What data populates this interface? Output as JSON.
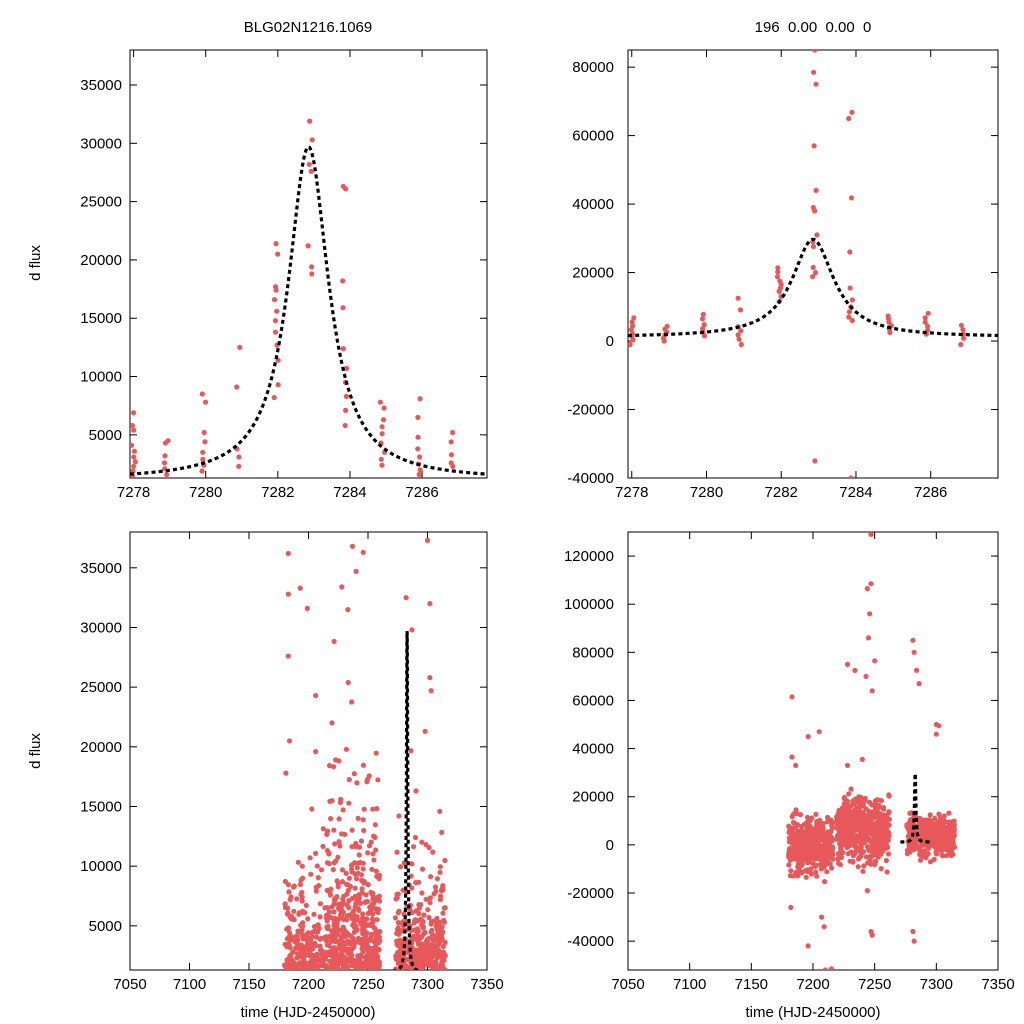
{
  "chart_data": [
    {
      "id": "zoom-normalized",
      "type": "scatter",
      "title": "BLG02N1216.1069",
      "xlabel": "",
      "ylabel": "d flux",
      "xlim": [
        7277.9,
        7287.8
      ],
      "ylim": [
        1300,
        38000
      ],
      "xticks": [
        7278,
        7280,
        7282,
        7284,
        7286
      ],
      "yticks": [
        5000,
        10000,
        15000,
        20000,
        25000,
        30000,
        35000
      ],
      "model": {
        "t0": 7282.85,
        "tau": 0.68,
        "peak": 29700,
        "base": 1100
      },
      "clusters": [
        {
          "x": 7278.0,
          "ys": [
            1500,
            1900,
            2300,
            2700,
            3100,
            3600,
            4100,
            5400,
            5800,
            6900
          ]
        },
        {
          "x": 7278.9,
          "ys": [
            1600,
            2100,
            2600,
            3200,
            4300,
            4500
          ]
        },
        {
          "x": 7279.95,
          "ys": [
            1900,
            2400,
            2900,
            3500,
            4400,
            5200,
            7800,
            8500
          ]
        },
        {
          "x": 7280.9,
          "ys": [
            2300,
            3100,
            3800,
            9100,
            12500
          ]
        },
        {
          "x": 7281.95,
          "ys": [
            8200,
            9300,
            11400,
            12700,
            13800,
            14800,
            15600,
            16600,
            17400,
            17700,
            20500,
            21400
          ]
        },
        {
          "x": 7282.9,
          "ys": [
            18800,
            19400,
            21200,
            27600,
            28200,
            30300,
            31900
          ]
        },
        {
          "x": 7283.85,
          "ys": [
            5800,
            7100,
            8300,
            9500,
            10700,
            12400,
            15900,
            18200,
            26100,
            26300
          ]
        },
        {
          "x": 7284.9,
          "ys": [
            2400,
            2900,
            3500,
            4300,
            5100,
            5700,
            6300,
            7300,
            7800
          ]
        },
        {
          "x": 7285.9,
          "ys": [
            1600,
            2000,
            2500,
            3100,
            3800,
            4800,
            6500,
            8100
          ]
        },
        {
          "x": 7286.85,
          "ys": [
            2300,
            2600,
            3300,
            4400,
            5200
          ]
        }
      ]
    },
    {
      "id": "zoom-raw",
      "type": "scatter",
      "title": "196 0.00 0.00 0",
      "xlabel": "",
      "ylabel": "",
      "xlim": [
        7277.9,
        7287.8
      ],
      "ylim": [
        -40000,
        85000
      ],
      "xticks": [
        7278,
        7280,
        7282,
        7284,
        7286
      ],
      "yticks": [
        -40000,
        -20000,
        0,
        20000,
        40000,
        60000,
        80000
      ],
      "model": {
        "t0": 7282.85,
        "tau": 0.68,
        "peak": 29700,
        "base": 1100
      },
      "clusters": [
        {
          "x": 7278.0,
          "ys": [
            -1000,
            300,
            1200,
            2200,
            3300,
            4400,
            5600,
            6800
          ]
        },
        {
          "x": 7278.9,
          "ys": [
            0,
            800,
            1700,
            2600,
            3500,
            4300
          ]
        },
        {
          "x": 7279.95,
          "ys": [
            1500,
            2600,
            3600,
            4800,
            6500,
            7800
          ]
        },
        {
          "x": 7280.9,
          "ys": [
            -1000,
            500,
            1800,
            3000,
            4200,
            9100,
            12500
          ]
        },
        {
          "x": 7281.95,
          "ys": [
            11500,
            13000,
            14500,
            15500,
            16500,
            17500,
            18800,
            20200,
            21400
          ]
        },
        {
          "x": 7282.9,
          "ys": [
            -35000,
            18800,
            20000,
            21500,
            27600,
            29000,
            31000,
            38000,
            39000,
            44000,
            57000,
            75000,
            78500,
            85000
          ]
        },
        {
          "x": 7283.85,
          "ys": [
            6000,
            7000,
            8500,
            10000,
            12000,
            15500,
            26000,
            41800,
            65000,
            66800,
            -40000
          ]
        },
        {
          "x": 7284.9,
          "ys": [
            2500,
            3500,
            4500,
            5500,
            6500,
            7300
          ]
        },
        {
          "x": 7285.9,
          "ys": [
            2000,
            3200,
            4300,
            5500,
            6800,
            8100
          ]
        },
        {
          "x": 7286.85,
          "ys": [
            -1000,
            800,
            2000,
            3300,
            4600
          ]
        }
      ]
    },
    {
      "id": "full-normalized",
      "type": "scatter",
      "title": "",
      "xlabel": "time (HJD-2450000)",
      "ylabel": "d flux",
      "xlim": [
        7050,
        7350
      ],
      "ylim": [
        1300,
        38000
      ],
      "xticks": [
        7050,
        7100,
        7150,
        7200,
        7250,
        7300,
        7350
      ],
      "yticks": [
        5000,
        10000,
        15000,
        20000,
        25000,
        30000,
        35000
      ],
      "model": {
        "t0": 7282.85,
        "tau": 0.68,
        "peak": 29700,
        "base": 1100
      },
      "scatter": {
        "seed": 11,
        "ranges": [
          {
            "x0": 7180,
            "x1": 7215,
            "n": 260,
            "scale": 2600,
            "max": 36500
          },
          {
            "x0": 7215,
            "x1": 7260,
            "n": 520,
            "scale": 4200,
            "max": 37000
          },
          {
            "x0": 7273,
            "x1": 7315,
            "n": 360,
            "scale": 3000,
            "max": 37300
          }
        ],
        "points": [
          [
            7183,
            36200
          ],
          [
            7183,
            32800
          ],
          [
            7193,
            33300
          ],
          [
            7199,
            31600
          ],
          [
            7206,
            24300
          ],
          [
            7228,
            33400
          ],
          [
            7233,
            31500
          ],
          [
            7237,
            36800
          ],
          [
            7240,
            34700
          ],
          [
            7246,
            36300
          ],
          [
            7282,
            32500
          ],
          [
            7287,
            29800
          ],
          [
            7300,
            37300
          ],
          [
            7302,
            32000
          ],
          [
            7298,
            21300
          ],
          [
            7302,
            25800
          ],
          [
            7303,
            24700
          ],
          [
            7183,
            27600
          ],
          [
            7184,
            20500
          ],
          [
            7181,
            17800
          ],
          [
            7206,
            19600
          ]
        ]
      }
    },
    {
      "id": "full-raw",
      "type": "scatter",
      "title": "",
      "xlabel": "time (HJD-2450000)",
      "ylabel": "",
      "xlim": [
        7050,
        7350
      ],
      "ylim": [
        -52000,
        130000
      ],
      "xticks": [
        7050,
        7100,
        7150,
        7200,
        7250,
        7300,
        7350
      ],
      "yticks": [
        -40000,
        -20000,
        0,
        20000,
        40000,
        60000,
        80000,
        100000,
        120000
      ],
      "model": {
        "t0": 7282.85,
        "tau": 0.68,
        "peak": 29700,
        "base": 1100
      },
      "scatter": {
        "seed": 29,
        "ranges": [
          {
            "x0": 7180,
            "x1": 7216,
            "n": 420,
            "center": -500,
            "spread": 5500
          },
          {
            "x0": 7219,
            "x1": 7262,
            "n": 480,
            "center": 6000,
            "spread": 7000
          },
          {
            "x0": 7276,
            "x1": 7315,
            "n": 380,
            "center": 3500,
            "spread": 4200
          }
        ],
        "points": [
          [
            7247,
            129000
          ],
          [
            7247,
            108500
          ],
          [
            7244,
            106500
          ],
          [
            7246,
            96000
          ],
          [
            7245,
            86000
          ],
          [
            7250,
            76500
          ],
          [
            7228,
            75000
          ],
          [
            7234,
            72500
          ],
          [
            7243,
            70000
          ],
          [
            7248,
            64000
          ],
          [
            7183,
            61500
          ],
          [
            7281,
            85000
          ],
          [
            7282,
            80000
          ],
          [
            7284,
            72500
          ],
          [
            7286,
            67000
          ],
          [
            7300,
            50000
          ],
          [
            7302,
            49500
          ],
          [
            7300,
            46000
          ],
          [
            7205,
            47000
          ],
          [
            7196,
            45000
          ],
          [
            7183,
            36500
          ],
          [
            7186,
            33000
          ],
          [
            7240,
            35500
          ],
          [
            7228,
            33000
          ],
          [
            7182,
            -26000
          ],
          [
            7207,
            -30000
          ],
          [
            7209,
            -34000
          ],
          [
            7196,
            -42000
          ],
          [
            7210,
            -52000
          ],
          [
            7215,
            -51500
          ],
          [
            7247,
            -36000
          ],
          [
            7248,
            -37500
          ],
          [
            7244,
            -19000
          ],
          [
            7281,
            -36000
          ],
          [
            7282,
            -40000
          ]
        ]
      }
    }
  ]
}
